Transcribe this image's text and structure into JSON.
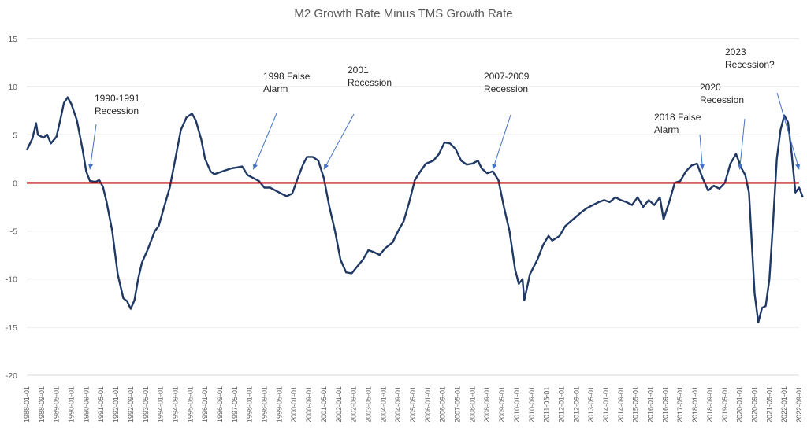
{
  "chart_data": {
    "type": "line",
    "title": "M2 Growth Rate Minus TMS Growth Rate",
    "xlabel": "",
    "ylabel": "",
    "ylim": [
      -20,
      15
    ],
    "yticks": [
      -20,
      -15,
      -10,
      -5,
      0,
      5,
      10,
      15
    ],
    "grid": true,
    "legend": "none",
    "colors": {
      "series": "#1f3864",
      "zero_line": "#c00000",
      "arrows": "#4472c4",
      "grid": "#d9d9d9"
    },
    "x_tick_labels": [
      "1988-01-01",
      "1988-09-01",
      "1989-05-01",
      "1990-01-01",
      "1990-09-01",
      "1991-05-01",
      "1992-01-01",
      "1992-09-01",
      "1993-05-01",
      "1994-01-01",
      "1994-09-01",
      "1995-05-01",
      "1996-01-01",
      "1996-09-01",
      "1997-05-01",
      "1998-01-01",
      "1998-09-01",
      "1999-05-01",
      "2000-01-01",
      "2000-09-01",
      "2001-05-01",
      "2002-01-01",
      "2002-09-01",
      "2003-05-01",
      "2004-01-01",
      "2004-09-01",
      "2005-05-01",
      "2006-01-01",
      "2006-09-01",
      "2007-05-01",
      "2008-01-01",
      "2008-09-01",
      "2009-05-01",
      "2010-01-01",
      "2010-09-01",
      "2011-05-01",
      "2012-01-01",
      "2012-09-01",
      "2013-05-01",
      "2014-01-01",
      "2014-09-01",
      "2015-05-01",
      "2016-01-01",
      "2016-09-01",
      "2017-05-01",
      "2018-01-01",
      "2018-09-01",
      "2019-05-01",
      "2020-01-01",
      "2020-09-01",
      "2021-05-01",
      "2022-01-01",
      "2022-09-01"
    ],
    "series": [
      {
        "points": [
          [
            "1988-01-01",
            3.4
          ],
          [
            "1988-04-01",
            4.6
          ],
          [
            "1988-06-01",
            6.2
          ],
          [
            "1988-07-01",
            5.0
          ],
          [
            "1988-10-01",
            4.7
          ],
          [
            "1988-12-01",
            5.0
          ],
          [
            "1989-02-01",
            4.1
          ],
          [
            "1989-05-01",
            4.8
          ],
          [
            "1989-07-01",
            6.5
          ],
          [
            "1989-09-01",
            8.3
          ],
          [
            "1989-11-01",
            8.9
          ],
          [
            "1990-01-01",
            8.2
          ],
          [
            "1990-04-01",
            6.5
          ],
          [
            "1990-07-01",
            3.5
          ],
          [
            "1990-09-01",
            1.2
          ],
          [
            "1990-11-01",
            0.2
          ],
          [
            "1991-02-01",
            0.1
          ],
          [
            "1991-04-01",
            0.3
          ],
          [
            "1991-06-01",
            -0.4
          ],
          [
            "1991-08-01",
            -2.0
          ],
          [
            "1991-11-01",
            -5.0
          ],
          [
            "1992-02-01",
            -9.5
          ],
          [
            "1992-05-01",
            -12.0
          ],
          [
            "1992-07-01",
            -12.3
          ],
          [
            "1992-09-01",
            -13.1
          ],
          [
            "1992-11-01",
            -12.2
          ],
          [
            "1993-01-01",
            -10.0
          ],
          [
            "1993-03-01",
            -8.3
          ],
          [
            "1993-06-01",
            -7.0
          ],
          [
            "1993-10-01",
            -5.0
          ],
          [
            "1993-12-01",
            -4.5
          ],
          [
            "1994-03-01",
            -2.5
          ],
          [
            "1994-06-01",
            -0.5
          ],
          [
            "1994-09-01",
            2.5
          ],
          [
            "1994-12-01",
            5.5
          ],
          [
            "1995-03-01",
            6.8
          ],
          [
            "1995-06-01",
            7.2
          ],
          [
            "1995-08-01",
            6.5
          ],
          [
            "1995-11-01",
            4.5
          ],
          [
            "1996-01-01",
            2.5
          ],
          [
            "1996-04-01",
            1.2
          ],
          [
            "1996-06-01",
            0.9
          ],
          [
            "1996-09-01",
            1.1
          ],
          [
            "1996-12-01",
            1.3
          ],
          [
            "1997-03-01",
            1.5
          ],
          [
            "1997-06-01",
            1.6
          ],
          [
            "1997-09-01",
            1.7
          ],
          [
            "1997-12-01",
            0.8
          ],
          [
            "1998-03-01",
            0.5
          ],
          [
            "1998-06-01",
            0.2
          ],
          [
            "1998-09-01",
            -0.5
          ],
          [
            "1998-12-01",
            -0.5
          ],
          [
            "1999-03-01",
            -0.8
          ],
          [
            "1999-06-01",
            -1.1
          ],
          [
            "1999-09-01",
            -1.4
          ],
          [
            "1999-12-01",
            -1.1
          ],
          [
            "2000-03-01",
            0.5
          ],
          [
            "2000-06-01",
            2.0
          ],
          [
            "2000-08-01",
            2.7
          ],
          [
            "2000-11-01",
            2.7
          ],
          [
            "2001-02-01",
            2.3
          ],
          [
            "2001-05-01",
            0.5
          ],
          [
            "2001-08-01",
            -2.5
          ],
          [
            "2001-11-01",
            -5.0
          ],
          [
            "2002-02-01",
            -8.0
          ],
          [
            "2002-05-01",
            -9.3
          ],
          [
            "2002-08-01",
            -9.4
          ],
          [
            "2002-11-01",
            -8.7
          ],
          [
            "2003-02-01",
            -8.0
          ],
          [
            "2003-05-01",
            -7.0
          ],
          [
            "2003-08-01",
            -7.2
          ],
          [
            "2003-11-01",
            -7.5
          ],
          [
            "2004-02-01",
            -6.8
          ],
          [
            "2004-06-01",
            -6.2
          ],
          [
            "2004-09-01",
            -5.0
          ],
          [
            "2004-12-01",
            -4.0
          ],
          [
            "2005-03-01",
            -2.0
          ],
          [
            "2005-06-01",
            0.3
          ],
          [
            "2005-09-01",
            1.2
          ],
          [
            "2005-12-01",
            2.0
          ],
          [
            "2006-04-01",
            2.3
          ],
          [
            "2006-07-01",
            3.0
          ],
          [
            "2006-10-01",
            4.2
          ],
          [
            "2007-01-01",
            4.1
          ],
          [
            "2007-04-01",
            3.5
          ],
          [
            "2007-07-01",
            2.3
          ],
          [
            "2007-10-01",
            1.9
          ],
          [
            "2008-01-01",
            2.0
          ],
          [
            "2008-04-01",
            2.3
          ],
          [
            "2008-06-01",
            1.5
          ],
          [
            "2008-09-01",
            1.0
          ],
          [
            "2008-12-01",
            1.2
          ],
          [
            "2009-03-01",
            0.3
          ],
          [
            "2009-06-01",
            -2.5
          ],
          [
            "2009-09-01",
            -5.0
          ],
          [
            "2009-12-01",
            -9.0
          ],
          [
            "2010-02-01",
            -10.5
          ],
          [
            "2010-04-01",
            -10.0
          ],
          [
            "2010-05-01",
            -12.2
          ],
          [
            "2010-08-01",
            -9.5
          ],
          [
            "2010-12-01",
            -8.0
          ],
          [
            "2011-03-01",
            -6.5
          ],
          [
            "2011-06-01",
            -5.5
          ],
          [
            "2011-08-01",
            -6.0
          ],
          [
            "2011-12-01",
            -5.5
          ],
          [
            "2012-03-01",
            -4.5
          ],
          [
            "2012-06-01",
            -4.0
          ],
          [
            "2012-09-01",
            -3.5
          ],
          [
            "2012-12-01",
            -3.0
          ],
          [
            "2013-03-01",
            -2.6
          ],
          [
            "2013-06-01",
            -2.3
          ],
          [
            "2013-09-01",
            -2.0
          ],
          [
            "2013-12-01",
            -1.8
          ],
          [
            "2014-03-01",
            -2.0
          ],
          [
            "2014-06-01",
            -1.5
          ],
          [
            "2014-09-01",
            -1.8
          ],
          [
            "2014-12-01",
            -2.0
          ],
          [
            "2015-03-01",
            -2.3
          ],
          [
            "2015-06-01",
            -1.5
          ],
          [
            "2015-09-01",
            -2.5
          ],
          [
            "2015-12-01",
            -1.8
          ],
          [
            "2016-03-01",
            -2.3
          ],
          [
            "2016-06-01",
            -1.5
          ],
          [
            "2016-08-01",
            -3.8
          ],
          [
            "2016-11-01",
            -2.0
          ],
          [
            "2017-02-01",
            0.0
          ],
          [
            "2017-05-01",
            0.2
          ],
          [
            "2017-08-01",
            1.2
          ],
          [
            "2017-11-01",
            1.8
          ],
          [
            "2018-02-01",
            2.0
          ],
          [
            "2018-05-01",
            0.5
          ],
          [
            "2018-08-01",
            -0.8
          ],
          [
            "2018-11-01",
            -0.3
          ],
          [
            "2019-02-01",
            -0.6
          ],
          [
            "2019-05-01",
            0.0
          ],
          [
            "2019-08-01",
            2.0
          ],
          [
            "2019-11-01",
            3.0
          ],
          [
            "2020-02-01",
            1.5
          ],
          [
            "2020-04-01",
            0.8
          ],
          [
            "2020-06-01",
            -1.0
          ],
          [
            "2020-09-01",
            -11.5
          ],
          [
            "2020-11-01",
            -14.5
          ],
          [
            "2021-01-01",
            -13.0
          ],
          [
            "2021-03-01",
            -12.8
          ],
          [
            "2021-05-01",
            -10.0
          ],
          [
            "2021-07-01",
            -4.0
          ],
          [
            "2021-09-01",
            2.5
          ],
          [
            "2021-11-01",
            5.5
          ],
          [
            "2022-01-01",
            7.0
          ],
          [
            "2022-03-01",
            6.3
          ],
          [
            "2022-05-01",
            3.0
          ],
          [
            "2022-07-01",
            -1.0
          ],
          [
            "2022-09-01",
            -0.5
          ],
          [
            "2022-11-01",
            -1.5
          ]
        ]
      }
    ],
    "annotations": [
      {
        "lines": [
          "1990-1991",
          "Recession"
        ],
        "point_to": [
          "1990-11-01",
          0
        ]
      },
      {
        "lines": [
          "1998 False",
          "Alarm"
        ],
        "point_to": [
          "1998-03-01",
          0
        ]
      },
      {
        "lines": [
          "2001",
          "Recession"
        ],
        "point_to": [
          "2001-05-01",
          0
        ]
      },
      {
        "lines": [
          "2007-2009",
          "Recession"
        ],
        "point_to": [
          "2008-12-01",
          0
        ]
      },
      {
        "lines": [
          "2018 False",
          "Alarm"
        ],
        "point_to": [
          "2018-05-01",
          0
        ]
      },
      {
        "lines": [
          "2020",
          "Recession"
        ],
        "point_to": [
          "2020-01-01",
          0
        ]
      },
      {
        "lines": [
          "2023",
          "Recession?"
        ],
        "point_to": [
          "2022-09-01",
          0
        ]
      }
    ]
  }
}
